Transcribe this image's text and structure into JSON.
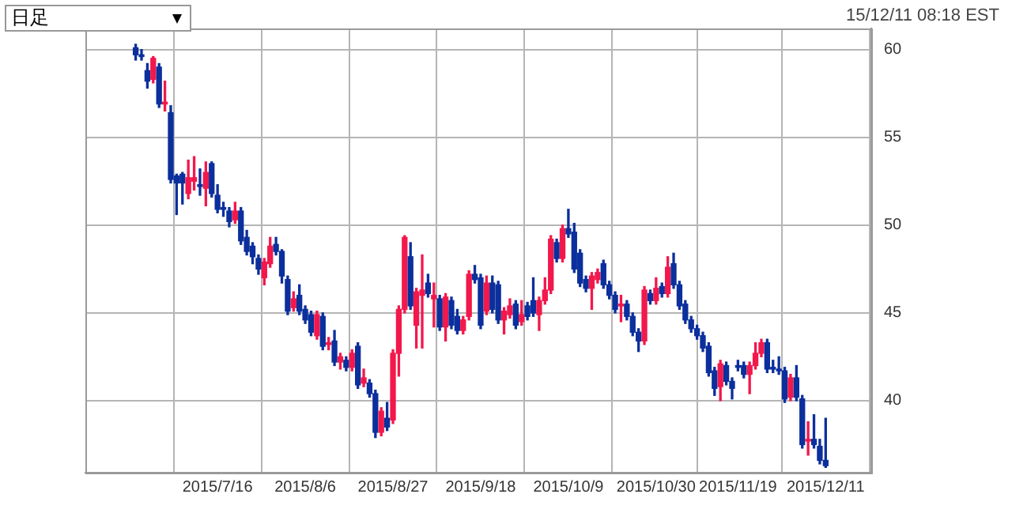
{
  "chart_data": {
    "type": "candlestick",
    "categories": [
      null,
      null,
      null,
      null,
      null,
      null,
      null,
      null,
      null,
      null,
      null,
      null,
      null,
      null,
      "2015/7/16",
      null,
      null,
      null,
      null,
      null,
      null,
      null,
      null,
      null,
      null,
      null,
      null,
      null,
      null,
      "2015/8/6",
      null,
      null,
      null,
      null,
      null,
      null,
      null,
      null,
      null,
      null,
      null,
      null,
      null,
      null,
      "2015/8/27",
      null,
      null,
      null,
      null,
      null,
      null,
      null,
      null,
      null,
      null,
      null,
      null,
      null,
      null,
      "2015/9/18",
      null,
      null,
      null,
      null,
      null,
      null,
      null,
      null,
      null,
      null,
      null,
      null,
      null,
      null,
      "2015/10/9",
      null,
      null,
      null,
      null,
      null,
      null,
      null,
      null,
      null,
      null,
      null,
      null,
      null,
      null,
      "2015/10/30",
      null,
      null,
      null,
      null,
      null,
      null,
      null,
      null,
      null,
      null,
      null,
      null,
      null,
      "2015/11/19",
      null,
      null,
      null,
      null,
      null,
      null,
      null,
      null,
      null,
      null,
      null,
      null,
      null,
      null,
      "2015/12/11"
    ],
    "ohlc": [
      [
        60.1,
        60.3,
        59.4,
        59.7
      ],
      [
        59.7,
        60.0,
        59.4,
        59.6
      ],
      [
        58.8,
        59.2,
        57.8,
        58.2
      ],
      [
        58.3,
        59.6,
        58.1,
        59.5
      ],
      [
        59.0,
        59.2,
        56.7,
        56.9
      ],
      [
        56.9,
        58.2,
        56.5,
        57.0
      ],
      [
        56.4,
        56.8,
        52.4,
        52.6
      ],
      [
        52.8,
        52.9,
        50.6,
        52.4
      ],
      [
        52.9,
        53.0,
        51.2,
        52.4
      ],
      [
        51.8,
        53.7,
        51.5,
        52.7
      ],
      [
        52.5,
        53.9,
        52.0,
        52.7
      ],
      [
        52.3,
        53.2,
        51.7,
        52.2
      ],
      [
        52.1,
        53.6,
        51.1,
        53.0
      ],
      [
        53.5,
        53.6,
        51.6,
        51.8
      ],
      [
        51.7,
        52.3,
        50.7,
        50.9
      ],
      [
        51.0,
        51.3,
        50.5,
        50.9
      ],
      [
        50.8,
        51.0,
        49.9,
        50.2
      ],
      [
        50.3,
        51.3,
        50.1,
        50.8
      ],
      [
        50.8,
        51.0,
        48.9,
        49.1
      ],
      [
        49.3,
        49.7,
        48.3,
        48.5
      ],
      [
        48.8,
        49.0,
        47.8,
        48.2
      ],
      [
        48.1,
        48.3,
        47.2,
        47.5
      ],
      [
        47.0,
        48.1,
        46.6,
        47.9
      ],
      [
        47.8,
        49.3,
        47.6,
        48.8
      ],
      [
        48.9,
        49.3,
        48.3,
        48.5
      ],
      [
        48.5,
        48.6,
        46.7,
        47.1
      ],
      [
        46.9,
        47.1,
        44.9,
        45.1
      ],
      [
        45.3,
        46.2,
        45.1,
        45.8
      ],
      [
        46.0,
        46.6,
        44.9,
        45.1
      ],
      [
        45.2,
        45.4,
        44.4,
        44.6
      ],
      [
        44.9,
        45.1,
        43.7,
        43.9
      ],
      [
        43.7,
        45.1,
        43.5,
        44.9
      ],
      [
        44.8,
        45.0,
        42.9,
        43.1
      ],
      [
        43.2,
        43.6,
        42.9,
        43.3
      ],
      [
        43.4,
        44.0,
        42.0,
        42.2
      ],
      [
        42.2,
        42.7,
        41.8,
        42.5
      ],
      [
        42.3,
        42.5,
        41.7,
        41.9
      ],
      [
        41.9,
        42.9,
        41.7,
        42.7
      ],
      [
        43.1,
        43.3,
        40.7,
        40.9
      ],
      [
        41.0,
        41.8,
        40.8,
        41.3
      ],
      [
        41.0,
        41.2,
        40.2,
        40.4
      ],
      [
        40.4,
        40.6,
        37.9,
        38.2
      ],
      [
        38.2,
        39.6,
        38.0,
        39.4
      ],
      [
        39.0,
        39.9,
        38.3,
        38.5
      ],
      [
        38.9,
        42.9,
        38.7,
        42.7
      ],
      [
        42.7,
        45.4,
        41.4,
        45.2
      ],
      [
        45.2,
        49.4,
        45.0,
        49.3
      ],
      [
        48.2,
        49.0,
        45.2,
        45.4
      ],
      [
        44.3,
        46.4,
        43.0,
        46.2
      ],
      [
        46.0,
        48.3,
        43.0,
        46.3
      ],
      [
        46.7,
        47.2,
        45.9,
        46.1
      ],
      [
        45.8,
        46.7,
        44.2,
        46.0
      ],
      [
        45.8,
        46.0,
        44.0,
        44.2
      ],
      [
        44.2,
        46.1,
        43.4,
        45.9
      ],
      [
        45.7,
        45.9,
        44.1,
        44.3
      ],
      [
        44.8,
        45.2,
        43.8,
        44.0
      ],
      [
        44.0,
        44.8,
        43.8,
        44.6
      ],
      [
        44.8,
        47.4,
        44.6,
        47.2
      ],
      [
        47.2,
        47.7,
        46.7,
        46.9
      ],
      [
        47.0,
        47.2,
        44.1,
        44.3
      ],
      [
        45.1,
        47.1,
        44.9,
        46.7
      ],
      [
        46.7,
        47.1,
        45.0,
        45.2
      ],
      [
        46.6,
        46.8,
        44.4,
        44.6
      ],
      [
        44.6,
        45.3,
        43.8,
        45.1
      ],
      [
        44.9,
        45.8,
        44.7,
        45.4
      ],
      [
        45.5,
        45.7,
        44.1,
        44.3
      ],
      [
        44.5,
        45.7,
        44.3,
        44.9
      ],
      [
        45.4,
        45.6,
        44.6,
        44.8
      ],
      [
        45.7,
        47.0,
        44.8,
        45.0
      ],
      [
        44.9,
        45.9,
        44.0,
        45.7
      ],
      [
        45.7,
        47.0,
        45.5,
        46.3
      ],
      [
        46.3,
        49.4,
        46.1,
        49.2
      ],
      [
        49.0,
        49.2,
        47.9,
        48.1
      ],
      [
        48.1,
        50.0,
        47.9,
        49.8
      ],
      [
        49.8,
        50.9,
        49.3,
        49.5
      ],
      [
        49.6,
        50.1,
        47.3,
        47.5
      ],
      [
        48.4,
        48.6,
        46.5,
        46.7
      ],
      [
        46.9,
        47.1,
        46.2,
        46.4
      ],
      [
        46.4,
        47.3,
        45.2,
        47.1
      ],
      [
        46.9,
        47.5,
        46.7,
        47.3
      ],
      [
        47.8,
        48.0,
        46.4,
        46.6
      ],
      [
        46.6,
        46.8,
        45.8,
        46.0
      ],
      [
        46.0,
        46.2,
        45.0,
        45.2
      ],
      [
        45.4,
        46.0,
        44.5,
        45.5
      ],
      [
        45.5,
        45.7,
        44.6,
        44.8
      ],
      [
        44.8,
        45.0,
        43.7,
        43.9
      ],
      [
        43.9,
        44.1,
        42.8,
        43.4
      ],
      [
        43.4,
        46.5,
        43.2,
        46.3
      ],
      [
        46.1,
        46.3,
        45.5,
        45.7
      ],
      [
        45.7,
        47.0,
        45.5,
        46.4
      ],
      [
        46.5,
        46.7,
        45.9,
        46.1
      ],
      [
        46.1,
        48.2,
        45.9,
        47.6
      ],
      [
        47.8,
        48.4,
        46.4,
        46.6
      ],
      [
        46.6,
        46.8,
        45.2,
        45.4
      ],
      [
        45.5,
        45.7,
        44.4,
        44.6
      ],
      [
        44.6,
        44.8,
        43.9,
        44.1
      ],
      [
        44.1,
        44.3,
        43.5,
        43.7
      ],
      [
        43.7,
        43.9,
        42.8,
        43.0
      ],
      [
        43.1,
        43.3,
        41.4,
        41.6
      ],
      [
        41.7,
        41.9,
        40.3,
        40.7
      ],
      [
        40.8,
        42.3,
        40.0,
        42.1
      ],
      [
        42.0,
        42.2,
        40.9,
        41.1
      ],
      [
        41.1,
        41.3,
        40.1,
        40.7
      ],
      [
        42.0,
        42.3,
        41.7,
        41.9
      ],
      [
        42.0,
        42.2,
        41.3,
        41.5
      ],
      [
        41.5,
        42.2,
        40.4,
        42.0
      ],
      [
        42.0,
        43.3,
        41.8,
        42.7
      ],
      [
        42.7,
        43.5,
        42.5,
        43.3
      ],
      [
        43.3,
        43.5,
        41.6,
        41.8
      ],
      [
        41.9,
        42.3,
        41.6,
        41.8
      ],
      [
        41.8,
        42.5,
        41.5,
        41.7
      ],
      [
        41.7,
        41.9,
        39.9,
        40.1
      ],
      [
        40.2,
        41.5,
        40.0,
        41.3
      ],
      [
        41.3,
        42.0,
        40.0,
        40.2
      ],
      [
        40.1,
        40.3,
        37.3,
        37.5
      ],
      [
        37.7,
        38.8,
        36.9,
        37.8
      ],
      [
        37.8,
        39.2,
        37.3,
        37.5
      ],
      [
        37.4,
        37.8,
        36.4,
        36.6
      ],
      [
        36.6,
        39.0,
        36.2,
        36.3
      ]
    ],
    "colors": [
      "#0b2f9c",
      "#0b2f9c",
      "#0b2f9c",
      "#f2184c",
      "#0b2f9c",
      "#f2184c",
      "#0b2f9c",
      "#0b2f9c",
      "#0b2f9c",
      "#f2184c",
      "#f2184c",
      "#0b2f9c",
      "#f2184c",
      "#0b2f9c",
      "#0b2f9c",
      "#0b2f9c",
      "#0b2f9c",
      "#f2184c",
      "#0b2f9c",
      "#0b2f9c",
      "#0b2f9c",
      "#0b2f9c",
      "#f2184c",
      "#f2184c",
      "#0b2f9c",
      "#0b2f9c",
      "#0b2f9c",
      "#f2184c",
      "#0b2f9c",
      "#0b2f9c",
      "#0b2f9c",
      "#f2184c",
      "#0b2f9c",
      "#f2184c",
      "#0b2f9c",
      "#f2184c",
      "#0b2f9c",
      "#f2184c",
      "#0b2f9c",
      "#f2184c",
      "#0b2f9c",
      "#0b2f9c",
      "#f2184c",
      "#0b2f9c",
      "#f2184c",
      "#f2184c",
      "#f2184c",
      "#0b2f9c",
      "#f2184c",
      "#f2184c",
      "#0b2f9c",
      "#f2184c",
      "#0b2f9c",
      "#f2184c",
      "#0b2f9c",
      "#0b2f9c",
      "#f2184c",
      "#f2184c",
      "#0b2f9c",
      "#0b2f9c",
      "#f2184c",
      "#0b2f9c",
      "#0b2f9c",
      "#f2184c",
      "#f2184c",
      "#0b2f9c",
      "#f2184c",
      "#0b2f9c",
      "#0b2f9c",
      "#f2184c",
      "#f2184c",
      "#f2184c",
      "#0b2f9c",
      "#f2184c",
      "#0b2f9c",
      "#0b2f9c",
      "#0b2f9c",
      "#0b2f9c",
      "#f2184c",
      "#f2184c",
      "#0b2f9c",
      "#0b2f9c",
      "#0b2f9c",
      "#f2184c",
      "#0b2f9c",
      "#0b2f9c",
      "#0b2f9c",
      "#f2184c",
      "#0b2f9c",
      "#f2184c",
      "#0b2f9c",
      "#f2184c",
      "#0b2f9c",
      "#0b2f9c",
      "#0b2f9c",
      "#0b2f9c",
      "#0b2f9c",
      "#0b2f9c",
      "#0b2f9c",
      "#0b2f9c",
      "#f2184c",
      "#0b2f9c",
      "#0b2f9c",
      "#0b2f9c",
      "#0b2f9c",
      "#f2184c",
      "#f2184c",
      "#f2184c",
      "#0b2f9c",
      "#0b2f9c",
      "#0b2f9c",
      "#0b2f9c",
      "#f2184c",
      "#0b2f9c",
      "#0b2f9c",
      "#f2184c",
      "#0b2f9c",
      "#0b2f9c",
      "#0b2f9c"
    ],
    "ylim": [
      35.9,
      61.2
    ],
    "yticks": [
      40,
      45,
      50,
      55,
      60
    ],
    "grid": true,
    "annotations": [
      "日足",
      "15/12/11 08:18 EST"
    ]
  }
}
